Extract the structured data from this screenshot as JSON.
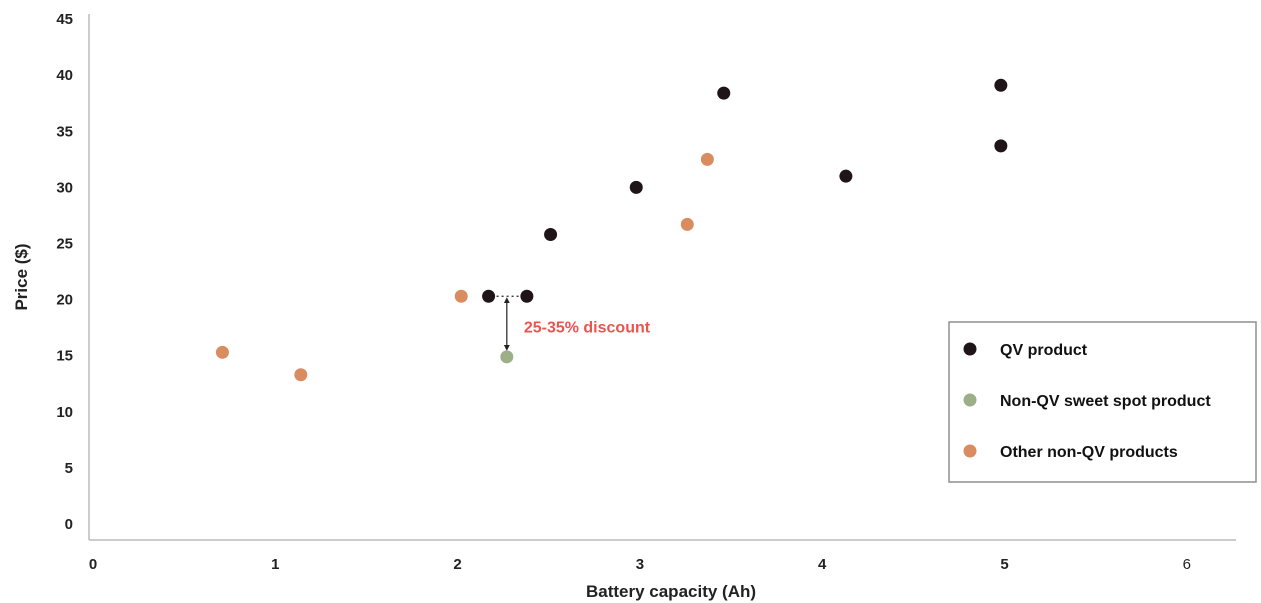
{
  "chart_data": {
    "type": "scatter",
    "xlabel": "Battery capacity (Ah)",
    "ylabel": "Price ($)",
    "xlim": [
      0,
      6
    ],
    "ylim": [
      0,
      45
    ],
    "x_ticks": [
      "0",
      "1",
      "2",
      "3",
      "4",
      "5",
      "6"
    ],
    "y_ticks": [
      "0",
      "5",
      "10",
      "15",
      "20",
      "25",
      "30",
      "35",
      "40",
      "45"
    ],
    "grid": false,
    "legend_position": "right",
    "series": [
      {
        "name": "QV product",
        "color": "#1f1418",
        "points": [
          {
            "x": 2.17,
            "y": 20.3
          },
          {
            "x": 2.38,
            "y": 20.3
          },
          {
            "x": 2.51,
            "y": 25.8
          },
          {
            "x": 2.98,
            "y": 30.0
          },
          {
            "x": 3.46,
            "y": 38.4
          },
          {
            "x": 4.13,
            "y": 31.0
          },
          {
            "x": 4.98,
            "y": 39.1
          },
          {
            "x": 4.98,
            "y": 33.7
          }
        ]
      },
      {
        "name": "Non-QV sweet spot product",
        "color": "#9caf88",
        "points": [
          {
            "x": 2.27,
            "y": 14.9
          }
        ]
      },
      {
        "name": "Other non-QV products",
        "color": "#d98c5f",
        "points": [
          {
            "x": 0.71,
            "y": 15.3
          },
          {
            "x": 1.14,
            "y": 13.3
          },
          {
            "x": 2.02,
            "y": 20.3
          },
          {
            "x": 3.26,
            "y": 26.7
          },
          {
            "x": 3.37,
            "y": 32.5
          }
        ]
      }
    ],
    "annotations": [
      {
        "text": "25-35% discount",
        "color": "#e8564f"
      }
    ]
  }
}
